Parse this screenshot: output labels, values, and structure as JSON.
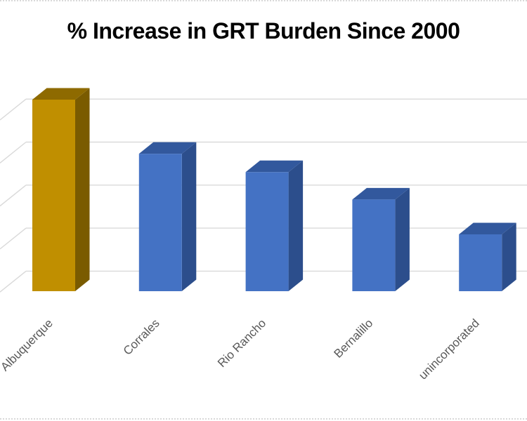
{
  "page": {
    "background": "#ffffff",
    "frame_dotted_line_color": "#d9d9d9"
  },
  "chart": {
    "title": "% Increase in GRT Burden Since 2000",
    "title_color": "#000000"
  },
  "chart_data": {
    "type": "bar",
    "projection": "3d",
    "title": "% Increase in GRT Burden Since 2000",
    "xlabel": "",
    "ylabel": "",
    "categories": [
      "Albuquerque",
      "Corrales",
      "Rio Rancho",
      "Bernalillo",
      "unincorporated"
    ],
    "values": [
      4.18,
      3.0,
      2.6,
      2.0,
      1.24
    ],
    "value_axis_labels_visible": false,
    "value_units": "gridline-intervals",
    "gridline_interval": 1,
    "ylim": [
      0,
      4.6
    ],
    "grid": true,
    "legend": "none",
    "colors": {
      "gridline": "#d9d9d9",
      "category_label": "#595959",
      "bars": [
        {
          "front": "#c08f00",
          "top": "#8e6a00",
          "side": "#7a5b00"
        },
        {
          "front": "#4472c4",
          "top": "#32589d",
          "side": "#2c4e8c"
        },
        {
          "front": "#4472c4",
          "top": "#32589d",
          "side": "#2c4e8c"
        },
        {
          "front": "#4472c4",
          "top": "#32589d",
          "side": "#2c4e8c"
        },
        {
          "front": "#4472c4",
          "top": "#32589d",
          "side": "#2c4e8c"
        }
      ]
    }
  }
}
